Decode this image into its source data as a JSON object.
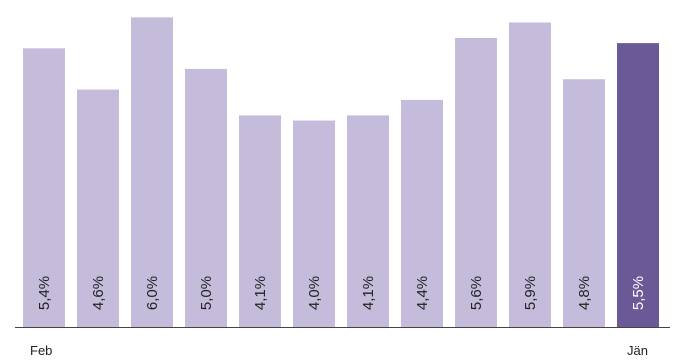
{
  "chart_data": {
    "type": "bar",
    "categories": [
      "Feb",
      "",
      "",
      "",
      "",
      "",
      "",
      "",
      "",
      "",
      "",
      "Jän"
    ],
    "values": [
      5.4,
      4.6,
      6.0,
      5.0,
      4.1,
      4.0,
      4.1,
      4.4,
      5.6,
      5.9,
      4.8,
      5.5
    ],
    "value_labels": [
      "5,4%",
      "4,6%",
      "6,0%",
      "5,0%",
      "4,1%",
      "4,0%",
      "4,1%",
      "4,4%",
      "5,6%",
      "5,9%",
      "4,8%",
      "5,5%"
    ],
    "highlight_index": 11,
    "ylim": [
      0,
      6.2
    ],
    "grid": false,
    "colors": {
      "bar": "#c5bcdb",
      "highlight": "#6b5896",
      "label": "#222222",
      "highlight_label": "#ffffff",
      "axis": "#444444"
    }
  }
}
